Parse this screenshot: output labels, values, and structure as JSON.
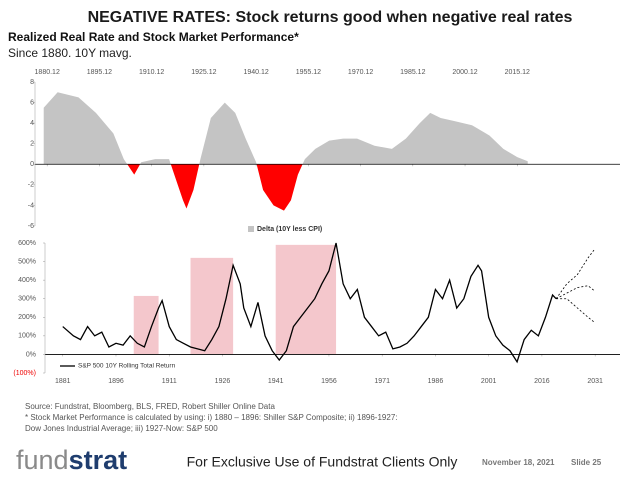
{
  "header": {
    "title": "NEGATIVE RATES:  Stock returns good when negative real rates",
    "subtitle": "Realized Real Rate and Stock Market Performance*",
    "note": "Since 1880. 10Y mavg."
  },
  "chart_data": [
    {
      "type": "area",
      "xlim": [
        1877.5,
        2045.5
      ],
      "xticks": [
        {
          "value": 1881,
          "label": "1880.12"
        },
        {
          "value": 1896,
          "label": "1895.12"
        },
        {
          "value": 1911,
          "label": "1910.12"
        },
        {
          "value": 1926,
          "label": "1925.12"
        },
        {
          "value": 1941,
          "label": "1940.12"
        },
        {
          "value": 1956,
          "label": "1955.12"
        },
        {
          "value": 1971,
          "label": "1970.12"
        },
        {
          "value": 1986,
          "label": "1985.12"
        },
        {
          "value": 2001,
          "label": "2000.12"
        },
        {
          "value": 2016,
          "label": "2015.12"
        }
      ],
      "ylim": [
        -6,
        8
      ],
      "yticks": [
        -6,
        -4,
        -2,
        0,
        2,
        4,
        6,
        8
      ],
      "series": [
        {
          "name": "Delta (10Y less CPI)",
          "color": "#c4c4c4",
          "negative_color": "#ff0000",
          "x": [
            1880,
            1884,
            1890,
            1895,
            1900,
            1903,
            1906,
            1908,
            1912,
            1916,
            1918,
            1920,
            1921,
            1923,
            1925,
            1928,
            1932,
            1935,
            1938,
            1941,
            1943,
            1946,
            1949,
            1951,
            1953,
            1955,
            1958,
            1962,
            1966,
            1970,
            1975,
            1980,
            1984,
            1988,
            1991,
            1994,
            1998,
            2003,
            2008,
            2012,
            2016,
            2019
          ],
          "values": [
            5.5,
            7.0,
            6.5,
            5.0,
            3.0,
            0.5,
            -1.0,
            0.2,
            0.5,
            0.5,
            -1.5,
            -3.5,
            -4.3,
            -2.5,
            0.5,
            4.5,
            6.0,
            5.0,
            2.5,
            0.2,
            -2.5,
            -4.0,
            -4.5,
            -3.5,
            -1.0,
            0.5,
            1.5,
            2.3,
            2.5,
            2.5,
            1.8,
            1.5,
            2.5,
            4.0,
            5.0,
            4.5,
            4.2,
            3.8,
            2.8,
            1.5,
            0.7,
            0.3
          ]
        }
      ]
    },
    {
      "type": "line",
      "xlim": [
        1876,
        2038
      ],
      "xticks": [
        1881,
        1896,
        1911,
        1926,
        1941,
        1956,
        1971,
        1986,
        2001,
        2016,
        2031
      ],
      "ylim": [
        -100,
        600
      ],
      "yticks": [
        {
          "value": -100,
          "label": "(100%)"
        },
        {
          "value": 0,
          "label": "0%"
        },
        {
          "value": 100,
          "label": "100%"
        },
        {
          "value": 200,
          "label": "200%"
        },
        {
          "value": 300,
          "label": "300%"
        },
        {
          "value": 400,
          "label": "400%"
        },
        {
          "value": 500,
          "label": "500%"
        },
        {
          "value": 600,
          "label": "600%"
        }
      ],
      "shaded_periods": [
        {
          "x": [
            1901,
            1908
          ],
          "y": 315,
          "color": "#f4c7cc"
        },
        {
          "x": [
            1917,
            1929
          ],
          "y": 520,
          "color": "#f4c7cc"
        },
        {
          "x": [
            1941,
            1958
          ],
          "y": 590,
          "color": "#f4c7cc"
        }
      ],
      "series": [
        {
          "name": "S&P 500 10Y Rolling Total Return",
          "color": "#000000",
          "x": [
            1881,
            1884,
            1886,
            1888,
            1890,
            1892,
            1894,
            1896,
            1898,
            1900,
            1902,
            1904,
            1906,
            1908,
            1909,
            1911,
            1913,
            1915,
            1917,
            1919,
            1921,
            1923,
            1925,
            1927,
            1929,
            1931,
            1932,
            1934,
            1936,
            1938,
            1940,
            1942,
            1944,
            1946,
            1948,
            1950,
            1952,
            1954,
            1956,
            1958,
            1960,
            1962,
            1964,
            1966,
            1968,
            1970,
            1972,
            1974,
            1976,
            1978,
            1980,
            1982,
            1984,
            1986,
            1988,
            1990,
            1992,
            1994,
            1996,
            1998,
            1999,
            2001,
            2003,
            2005,
            2007,
            2009,
            2011,
            2013,
            2015,
            2017,
            2019,
            2020
          ],
          "values": [
            150,
            100,
            80,
            150,
            100,
            120,
            40,
            60,
            50,
            100,
            60,
            40,
            150,
            250,
            290,
            150,
            80,
            60,
            40,
            30,
            20,
            80,
            150,
            300,
            480,
            380,
            250,
            150,
            280,
            100,
            20,
            -30,
            20,
            150,
            200,
            250,
            300,
            380,
            450,
            600,
            380,
            300,
            350,
            200,
            150,
            100,
            120,
            30,
            40,
            60,
            100,
            150,
            200,
            350,
            300,
            400,
            250,
            300,
            420,
            480,
            450,
            200,
            100,
            50,
            20,
            -40,
            80,
            130,
            100,
            200,
            320,
            300
          ]
        },
        {
          "color": "#000000",
          "dashed": true,
          "x": [
            2020,
            2023,
            2026,
            2029,
            2031
          ],
          "values": [
            300,
            380,
            430,
            520,
            570
          ]
        },
        {
          "color": "#000000",
          "dashed": true,
          "x": [
            2020,
            2023,
            2026,
            2029,
            2031
          ],
          "values": [
            300,
            330,
            360,
            370,
            340
          ]
        },
        {
          "color": "#000000",
          "dashed": true,
          "x": [
            2020,
            2023,
            2026,
            2029,
            2031
          ],
          "values": [
            300,
            300,
            250,
            200,
            170
          ]
        }
      ]
    }
  ],
  "source": [
    "Source: Fundstrat, Bloomberg, BLS, FRED, Robert Shiller Online Data",
    "* Stock Market Performance is calculated by using: i) 1880 – 1896: Shiller S&P Composite; ii) 1896-1927:",
    "Dow Jones Industrial Average; iii) 1927-Now: S&P 500"
  ],
  "footer": {
    "logo": [
      "fund",
      "strat"
    ],
    "text": "For Exclusive Use of Fundstrat Clients Only",
    "date": "November 18, 2021",
    "slide": "Slide 25"
  }
}
